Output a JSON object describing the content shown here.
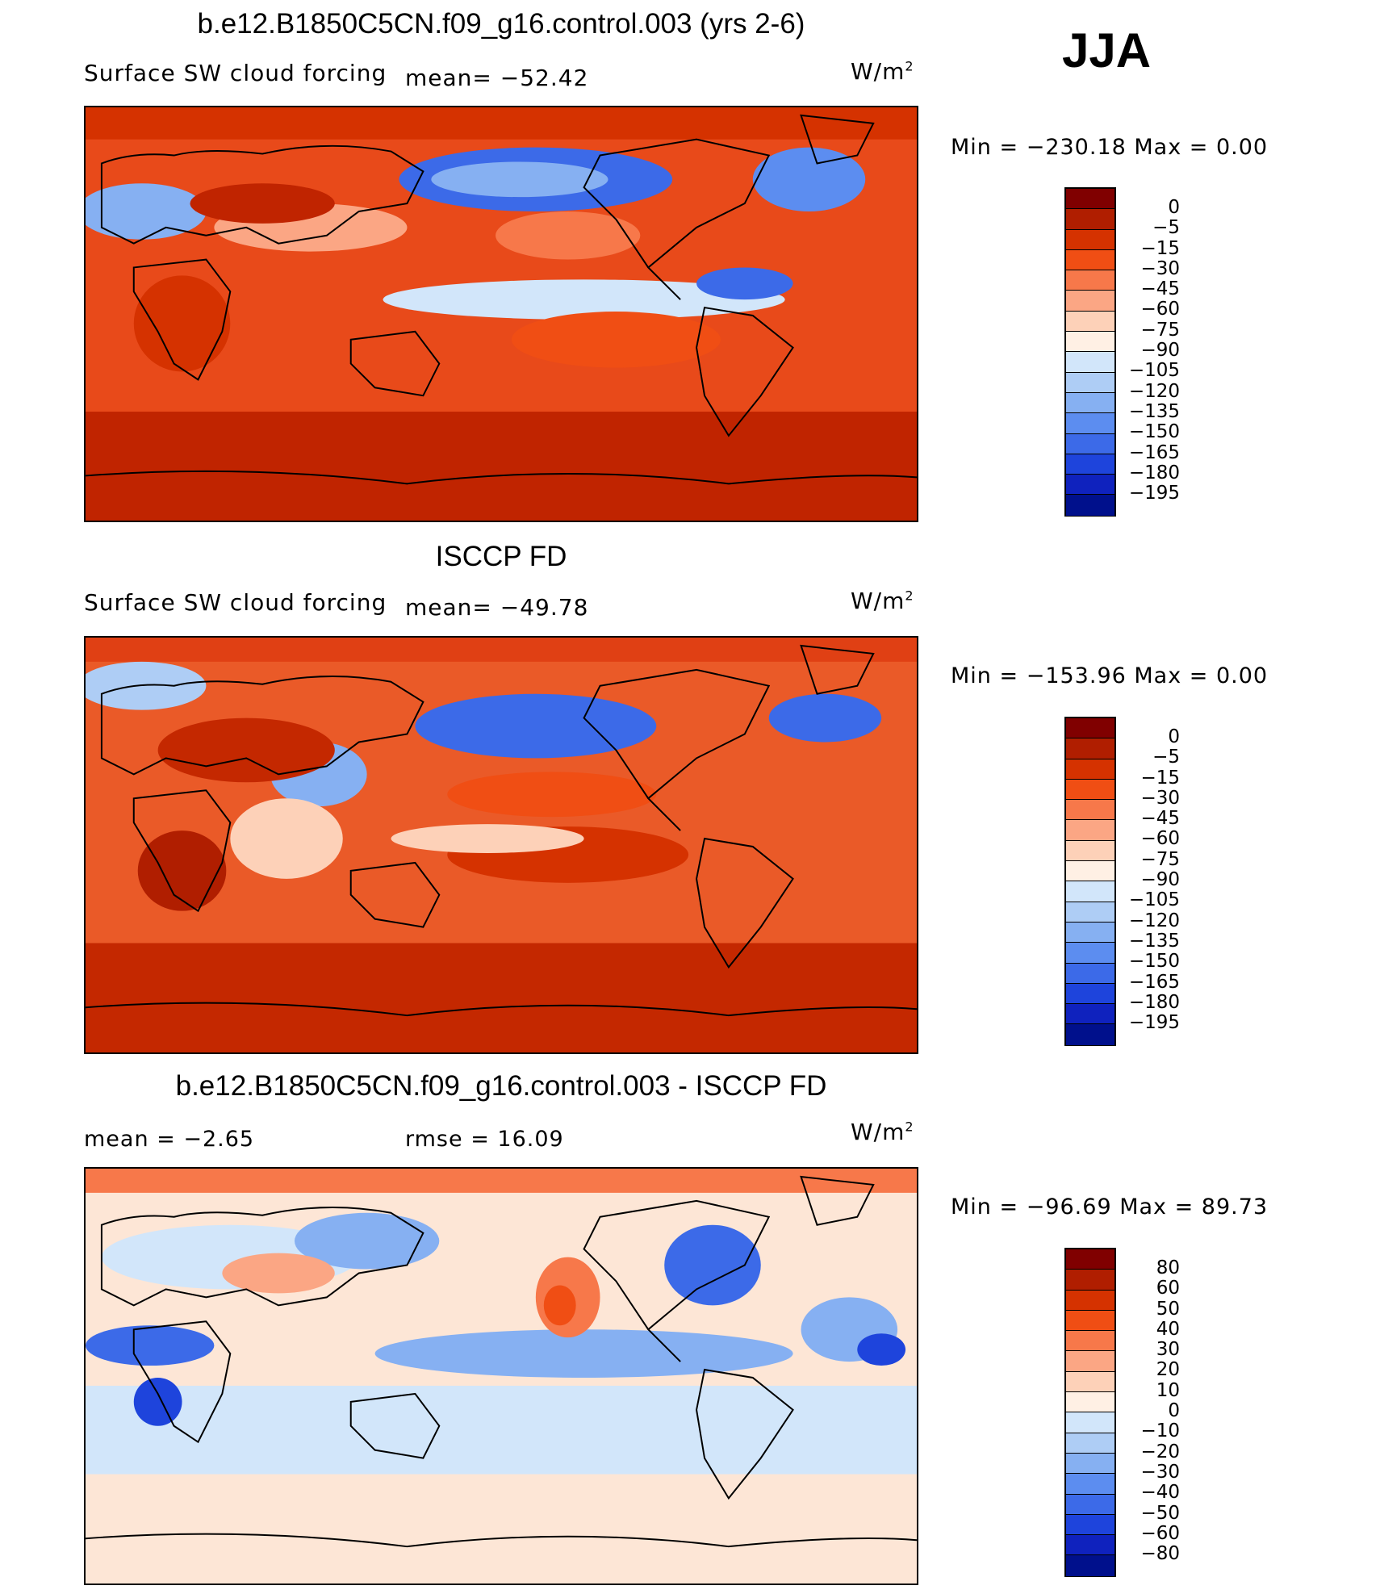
{
  "season": "JJA",
  "units_label": "W/m",
  "units_sup": "2",
  "colors": {
    "forcing_scale": [
      "#800000",
      "#b01e00",
      "#d53200",
      "#f04e14",
      "#f7784a",
      "#fba684",
      "#fdd1b8",
      "#fff0e4",
      "#d2e6fa",
      "#aecdf5",
      "#86b0f2",
      "#5c8df0",
      "#3c6ae8",
      "#1e44dc",
      "#0f22be",
      "#00108c"
    ],
    "diff_scale": [
      "#800000",
      "#b01e00",
      "#d53200",
      "#f04e14",
      "#f7784a",
      "#fba684",
      "#fdd1b8",
      "#fff0e4",
      "#d2e6fa",
      "#aecdf5",
      "#86b0f2",
      "#5c8df0",
      "#3c6ae8",
      "#1e44dc",
      "#0f22be",
      "#00108c"
    ]
  },
  "panels": [
    {
      "title": "b.e12.B1850C5CN.f09_g16.control.003 (yrs 2-6)",
      "variable": "Surface SW cloud forcing",
      "mean_text": "mean=  −52.42",
      "minmax_text": "Min  =  −230.18  Max  =      0.00",
      "colorbar_labels": [
        "0",
        "−5",
        "−15",
        "−30",
        "−45",
        "−60",
        "−75",
        "−90",
        "−105",
        "−120",
        "−135",
        "−150",
        "−165",
        "−180",
        "−195"
      ]
    },
    {
      "title": "ISCCP FD",
      "variable": "Surface SW cloud forcing",
      "mean_text": "mean=  −49.78",
      "minmax_text": "Min  =  −153.96  Max  =      0.00",
      "colorbar_labels": [
        "0",
        "−5",
        "−15",
        "−30",
        "−45",
        "−60",
        "−75",
        "−90",
        "−105",
        "−120",
        "−135",
        "−150",
        "−165",
        "−180",
        "−195"
      ]
    },
    {
      "title": "b.e12.B1850C5CN.f09_g16.control.003 - ISCCP FD",
      "mean_text": "mean  =    −2.65",
      "rmse_text": "rmse  =    16.09",
      "minmax_text": "Min  =  −96.69  Max  =    89.73",
      "colorbar_labels": [
        "80",
        "60",
        "50",
        "40",
        "30",
        "20",
        "10",
        "0",
        "−10",
        "−20",
        "−30",
        "−40",
        "−50",
        "−60",
        "−80"
      ]
    }
  ]
}
